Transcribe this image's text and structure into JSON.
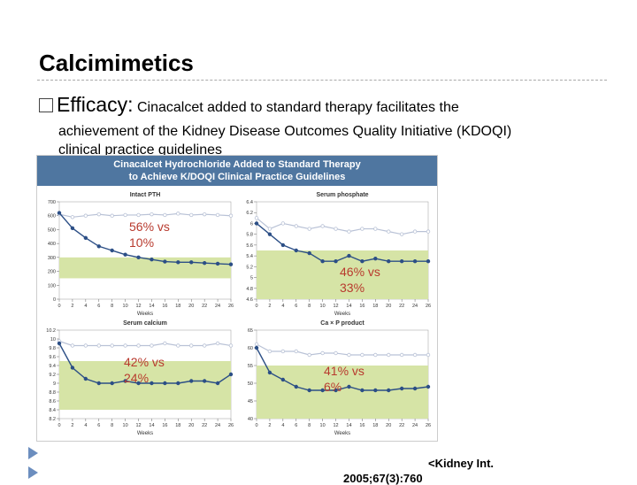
{
  "slide": {
    "title": "Calcimimetics",
    "bullet_label": "Efficacy:",
    "bullet_text": "Cinacalcet  added to standard therapy facilitates the",
    "bullet_text_2": "achievement of the Kidney Disease Outcomes Quality Initiative (KDOQI)",
    "bullet_text_3": "clinical practice guidelines",
    "citation": "<Kidney Int.",
    "citation_cut": "2005;67(3):760"
  },
  "figure": {
    "header_1": "Cinacalcet Hydrochloride Added to Standard Therapy",
    "header_2": "to Achieve K/DOQI Clinical Practice Guidelines"
  },
  "annotations": [
    "56% vs 10%",
    "46% vs 33%",
    "42% vs 24%",
    "41% vs 6%"
  ],
  "colors": {
    "target_band": "#d6e4a6",
    "cinacalcet": "#2c4f86",
    "control": "#b9c2d6",
    "header": "#4f76a0",
    "annotation": "#b83a2e"
  },
  "chart_data": [
    {
      "type": "line",
      "title": "Intact PTH",
      "xlabel": "Weeks",
      "x": [
        0,
        2,
        4,
        6,
        8,
        10,
        12,
        14,
        16,
        18,
        20,
        22,
        24,
        26
      ],
      "ylim": [
        0,
        700
      ],
      "yticks": [
        0,
        100,
        200,
        300,
        400,
        500,
        600,
        700
      ],
      "target_band": [
        150,
        300
      ],
      "series": [
        {
          "values": [
            620,
            510,
            440,
            380,
            350,
            320,
            300,
            285,
            270,
            265,
            265,
            260,
            255,
            250
          ]
        },
        {
          "values": [
            610,
            590,
            600,
            610,
            600,
            605,
            605,
            610,
            605,
            615,
            605,
            610,
            605,
            600
          ]
        }
      ]
    },
    {
      "type": "line",
      "title": "Serum phosphate",
      "xlabel": "Weeks",
      "x": [
        0,
        2,
        4,
        6,
        8,
        10,
        12,
        14,
        16,
        18,
        20,
        22,
        24,
        26
      ],
      "ylim": [
        4.6,
        6.4
      ],
      "yticks": [
        4.6,
        4.8,
        5.0,
        5.2,
        5.4,
        5.6,
        5.8,
        6.0,
        6.2,
        6.4
      ],
      "target_band": [
        4.6,
        5.5
      ],
      "series": [
        {
          "values": [
            6.0,
            5.8,
            5.6,
            5.5,
            5.45,
            5.3,
            5.3,
            5.4,
            5.3,
            5.35,
            5.3,
            5.3,
            5.3,
            5.3
          ]
        },
        {
          "values": [
            6.1,
            5.9,
            6.0,
            5.95,
            5.9,
            5.95,
            5.9,
            5.85,
            5.9,
            5.9,
            5.85,
            5.8,
            5.85,
            5.85
          ]
        }
      ]
    },
    {
      "type": "line",
      "title": "Serum calcium",
      "xlabel": "Weeks",
      "x": [
        0,
        2,
        4,
        6,
        8,
        10,
        12,
        14,
        16,
        18,
        20,
        22,
        24,
        26
      ],
      "ylim": [
        8.2,
        10.2
      ],
      "yticks": [
        8.2,
        8.4,
        8.6,
        8.8,
        9.0,
        9.2,
        9.4,
        9.6,
        9.8,
        10.0,
        10.2
      ],
      "target_band": [
        8.4,
        9.5
      ],
      "series": [
        {
          "values": [
            9.9,
            9.35,
            9.1,
            9.0,
            9.0,
            9.05,
            9.0,
            9.0,
            9.0,
            9.0,
            9.05,
            9.05,
            9.0,
            9.2
          ]
        },
        {
          "values": [
            9.95,
            9.85,
            9.85,
            9.85,
            9.85,
            9.85,
            9.85,
            9.85,
            9.9,
            9.85,
            9.85,
            9.85,
            9.9,
            9.85
          ]
        }
      ]
    },
    {
      "type": "line",
      "title": "Ca × P product",
      "xlabel": "Weeks",
      "x": [
        0,
        2,
        4,
        6,
        8,
        10,
        12,
        14,
        16,
        18,
        20,
        22,
        24,
        26
      ],
      "ylim": [
        40,
        65
      ],
      "yticks": [
        40,
        45,
        50,
        55,
        60,
        65
      ],
      "target_band": [
        40,
        55
      ],
      "series": [
        {
          "values": [
            60,
            53,
            51,
            49,
            48,
            48,
            48,
            49,
            48,
            48,
            48,
            48.5,
            48.5,
            49
          ]
        },
        {
          "values": [
            61,
            59,
            59,
            59,
            58,
            58.5,
            58.5,
            58,
            58,
            58,
            58,
            58,
            58,
            58
          ]
        }
      ]
    }
  ]
}
